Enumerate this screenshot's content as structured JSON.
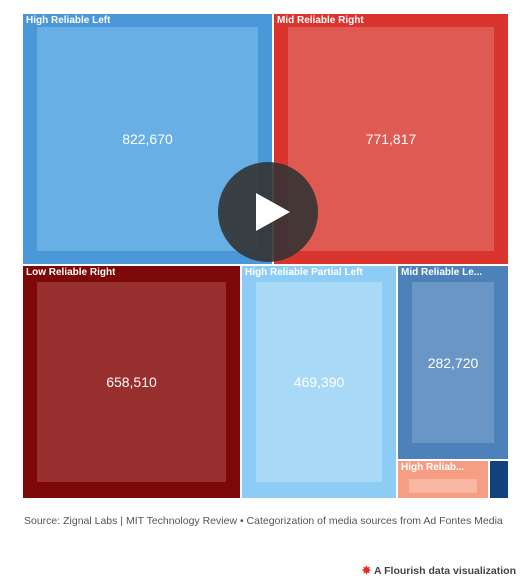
{
  "chart_data": {
    "type": "treemap",
    "items": [
      {
        "label": "High Reliable Left",
        "value": 822670,
        "value_label": "822,670",
        "color": "#4a98d8",
        "inner_color": "#67afe4"
      },
      {
        "label": "Mid Reliable Right",
        "value": 771817,
        "value_label": "771,817",
        "color": "#d9352e",
        "inner_color": "#e05a54"
      },
      {
        "label": "Low Reliable Right",
        "value": 658510,
        "value_label": "658,510",
        "color": "#7d0808",
        "inner_color": "#972f2f"
      },
      {
        "label": "High Reliable Partial Left",
        "value": 469390,
        "value_label": "469,390",
        "color": "#8dccf4",
        "inner_color": "#a8daf8"
      },
      {
        "label": "Mid Reliable Le...",
        "value": 282720,
        "value_label": "282,720",
        "color": "#4c82b9",
        "inner_color": "#6a96c6"
      },
      {
        "label": "High Reliab...",
        "value": null,
        "value_label": "",
        "color": "#f59e84",
        "inner_color": "#f8b8a4"
      },
      {
        "label": "",
        "value": null,
        "value_label": "",
        "color": "#12427e",
        "inner_color": "#12427e"
      }
    ]
  },
  "source_text": "Source: Zignal Labs | MIT Technology Review • Categorization of media sources from Ad Fontes Media",
  "flourish_text": "A Flourish data visualization",
  "icons": {
    "play": "play-icon",
    "flourish": "flourish-logo-icon"
  }
}
